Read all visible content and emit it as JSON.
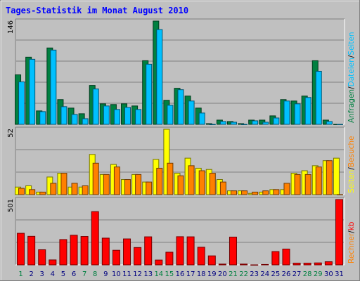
{
  "chart_data": {
    "type": "bar",
    "title": "Tages-Statistik im Monat August 2010",
    "categories": [
      "1",
      "2",
      "3",
      "4",
      "5",
      "6",
      "7",
      "8",
      "9",
      "10",
      "11",
      "12",
      "13",
      "14",
      "15",
      "16",
      "17",
      "18",
      "19",
      "20",
      "21",
      "22",
      "23",
      "24",
      "25",
      "26",
      "27",
      "28",
      "29",
      "30",
      "31"
    ],
    "weekend_days": [
      "1",
      "7",
      "8",
      "14",
      "15",
      "21",
      "22",
      "28",
      "29"
    ],
    "panels": [
      {
        "id": "top",
        "max_label": "146",
        "ymax": 146,
        "legend": [
          "Anfragen",
          "/",
          "Dateien",
          "/",
          "Seiten"
        ],
        "series": [
          {
            "name": "Anfragen",
            "color": "#008040",
            "values": [
              70,
              95,
              19,
              108,
              35,
              23,
              15,
              55,
              29,
              28,
              29,
              26,
              90,
              146,
              34,
              51,
              40,
              23,
              1,
              6,
              4,
              1,
              6,
              6,
              12,
              35,
              33,
              40,
              90,
              6,
              0
            ]
          },
          {
            "name": "Dateien",
            "color": "#00c0ff",
            "values": [
              60,
              92,
              18,
              105,
              25,
              14,
              8,
              50,
              26,
              21,
              24,
              21,
              85,
              134,
              27,
              49,
              33,
              16,
              0,
              4,
              3,
              0,
              5,
              3,
              9,
              33,
              29,
              38,
              75,
              4,
              0
            ]
          }
        ]
      },
      {
        "id": "mid",
        "max_label": "52",
        "ymax": 52,
        "legend": [
          "Seiten",
          "/",
          "Besuche"
        ],
        "series": [
          {
            "name": "Seiten",
            "color": "#ffff00",
            "values": [
              6,
              7,
              2,
              14,
              17,
              6,
              6,
              32,
              16,
              24,
              12,
              16,
              10,
              28,
              52,
              17,
              29,
              21,
              20,
              12,
              3,
              3,
              1,
              2,
              4,
              4,
              17,
              19,
              23,
              27,
              29
            ]
          },
          {
            "name": "Besuche",
            "color": "#ff8000",
            "values": [
              5,
              4,
              2,
              9,
              17,
              9,
              7,
              25,
              16,
              22,
              12,
              16,
              10,
              21,
              25,
              15,
              23,
              19,
              17,
              10,
              3,
              3,
              2,
              3,
              4,
              9,
              16,
              16,
              22,
              27,
              0
            ]
          }
        ]
      },
      {
        "id": "bottom",
        "max_label": "501",
        "ymax": 501,
        "legend": [
          "Rechner",
          "/",
          "kb"
        ],
        "series": [
          {
            "name": "kB",
            "color": "#ff0000",
            "values": [
              242,
              219,
              116,
              38,
              194,
              227,
              218,
              408,
              205,
              112,
              199,
              133,
              215,
              37,
              97,
              216,
              215,
              135,
              69,
              6,
              213,
              6,
              0,
              3,
              102,
              121,
              13,
              13,
              15,
              24,
              501
            ]
          }
        ]
      }
    ]
  }
}
